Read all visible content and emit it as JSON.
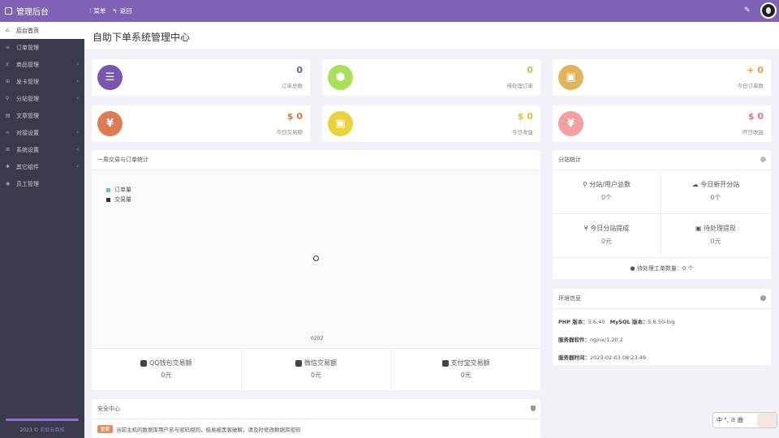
{
  "header": {
    "brand": "管理后台",
    "menu_label": "菜单",
    "back_label": "返回"
  },
  "sidebar": {
    "items": [
      {
        "label": "后台首页",
        "icon": "home-icon",
        "active": true,
        "chevron": false
      },
      {
        "label": "订单管理",
        "icon": "list-icon",
        "active": false,
        "chevron": false
      },
      {
        "label": "商品管理",
        "icon": "cart-icon",
        "active": false,
        "chevron": true
      },
      {
        "label": "发卡管理",
        "icon": "grid-icon",
        "active": false,
        "chevron": true
      },
      {
        "label": "分站管理",
        "icon": "sitemap-icon",
        "active": false,
        "chevron": true
      },
      {
        "label": "文章管理",
        "icon": "doc-icon",
        "active": false,
        "chevron": false
      },
      {
        "label": "对接设置",
        "icon": "link-icon",
        "active": false,
        "chevron": true
      },
      {
        "label": "系统设置",
        "icon": "gear-icon",
        "active": false,
        "chevron": true
      },
      {
        "label": "其它组件",
        "icon": "puzzle-icon",
        "active": false,
        "chevron": true
      },
      {
        "label": "员工管理",
        "icon": "user-icon",
        "active": false,
        "chevron": false
      }
    ],
    "footer_prefix": "2023 ©",
    "footer_link": "彩虹云商城"
  },
  "page": {
    "title": "自助下单系统管理中心"
  },
  "stats": [
    {
      "value": "0",
      "label": "订单总数",
      "color": "#7a56b0",
      "num_color": "#7a56b0",
      "icon": "list-icon"
    },
    {
      "value": "0",
      "label": "待处理订单",
      "color": "#a8e05a",
      "num_color": "#a2d64e",
      "icon": "cube-icon"
    },
    {
      "value": "+ 0",
      "label": "今日订单数",
      "color": "#e2b45a",
      "num_color": "#e2a43a",
      "icon": "briefcase-icon"
    },
    {
      "value": "$ 0",
      "label": "今日交易额",
      "color": "#e07a52",
      "num_color": "#e0703a",
      "icon": "yen-icon"
    },
    {
      "value": "$ 0",
      "label": "今日收益",
      "color": "#e8d43a",
      "num_color": "#e0c020",
      "icon": "briefcase-icon"
    },
    {
      "value": "$ 0",
      "label": "昨日收益",
      "color": "#f2a0a0",
      "num_color": "#e8707a",
      "icon": "yen-icon"
    }
  ],
  "week_panel": {
    "title": "一周交易与订单统计",
    "legend": [
      {
        "name": "订单量",
        "color": "#5bc0de"
      },
      {
        "name": "交易量",
        "color": "#333333"
      }
    ],
    "x_tick": "0202"
  },
  "chart_data": {
    "type": "line",
    "title": "一周交易与订单统计",
    "x": [
      "0202"
    ],
    "series": [
      {
        "name": "订单量",
        "values": [
          0
        ]
      },
      {
        "name": "交易量",
        "values": [
          0
        ]
      }
    ],
    "legend_position": "top-left"
  },
  "trade": [
    {
      "title": "QQ钱包交易额",
      "value": "0元",
      "icon": "qq-icon"
    },
    {
      "title": "微信交易额",
      "value": "0元",
      "icon": "wechat-icon"
    },
    {
      "title": "支付宝交易额",
      "value": "0元",
      "icon": "card-icon"
    }
  ],
  "substation": {
    "title": "分站统计",
    "cells": [
      {
        "title": "分站/用户总数",
        "value": "0个",
        "icon": "sitemap-icon"
      },
      {
        "title": "今日新开分站",
        "value": "0个",
        "icon": "cloud-icon"
      },
      {
        "title": "今日分站提成",
        "value": "0元",
        "icon": "yen-icon"
      },
      {
        "title": "待处理提现",
        "value": "0元",
        "icon": "money-icon"
      }
    ],
    "ticket_label": "待处理工单数量：",
    "ticket_value": "0 个"
  },
  "env": {
    "title": "环境信息",
    "php_label": "PHP 版本：",
    "php_value": "5.6.40",
    "mysql_label": "MySQL 版本：",
    "mysql_value": "5.6.50-log",
    "server_label": "服务器软件：",
    "server_value": "nginx/1.20.2",
    "time_label": "服务器时间：",
    "time_value": "2023-02-03 08:23:49"
  },
  "security": {
    "title": "安全中心",
    "badge": "重要",
    "text": "当前主机的数据库用户名与密码相同，极易被黑客破解，请及时修改数据库密码"
  },
  "widget": {
    "text": "中 °, ㄹ 曲"
  }
}
